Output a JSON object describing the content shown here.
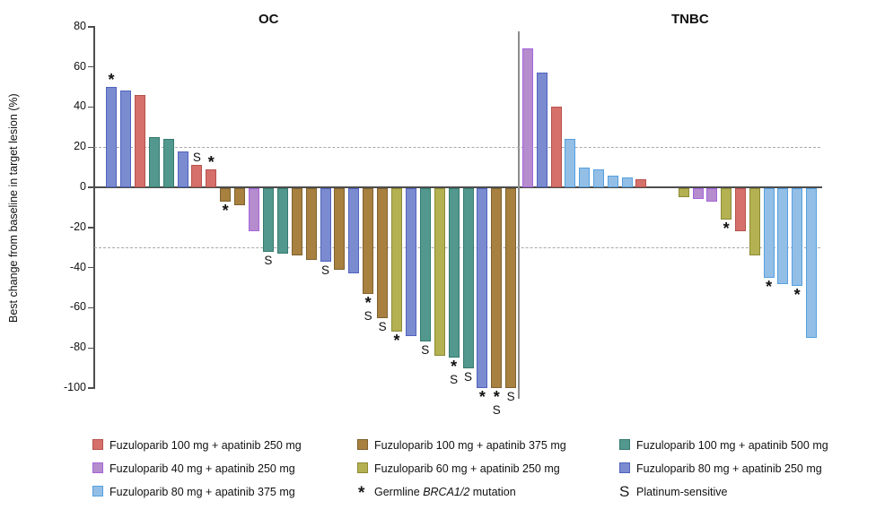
{
  "chart_data": {
    "type": "bar",
    "subtype": "waterfall",
    "title_left": "OC",
    "title_right": "TNBC",
    "ylabel": "Best change from baseline in target lesion (%)",
    "ylim": [
      -100,
      80
    ],
    "yticks": [
      80,
      60,
      40,
      20,
      0,
      -20,
      -40,
      -60,
      -80,
      -100
    ],
    "reference_lines": [
      20,
      -30
    ],
    "grid": false,
    "flag_meanings": {
      "*": "Germline BRCA1/2 mutation",
      "S": "Platinum-sensitive"
    },
    "groups": {
      "red": "Fuzuloparib 100 mg + apatinib 250 mg",
      "purple": "Fuzuloparib 40 mg + apatinib 250 mg",
      "lightblue": "Fuzuloparib 80 mg + apatinib 375 mg",
      "brown": "Fuzuloparib 100 mg + apatinib 375 mg",
      "olive": "Fuzuloparib 60 mg + apatinib 250 mg",
      "teal": "Fuzuloparib 100 mg + apatinib 500 mg",
      "blue": "Fuzuloparib 80 mg + apatinib 250 mg"
    },
    "colors": {
      "red": {
        "fill": "#D5706B",
        "border": "#B7534E"
      },
      "purple": {
        "fill": "#B58CCD",
        "border": "#A565DC"
      },
      "lightblue": {
        "fill": "#93BFE6",
        "border": "#55A0E0"
      },
      "brown": {
        "fill": "#A8803F",
        "border": "#7F612F"
      },
      "olive": {
        "fill": "#B4B152",
        "border": "#8C8A36"
      },
      "teal": {
        "fill": "#53988F",
        "border": "#357A6E"
      },
      "blue": {
        "fill": "#7A8BD0",
        "border": "#5163BE"
      }
    },
    "panels": [
      {
        "name": "OC",
        "bars": [
          {
            "value": 50,
            "group": "blue",
            "flags": "*"
          },
          {
            "value": 48,
            "group": "blue"
          },
          {
            "value": 46,
            "group": "red"
          },
          {
            "value": 25,
            "group": "teal"
          },
          {
            "value": 24,
            "group": "teal"
          },
          {
            "value": 18,
            "group": "blue"
          },
          {
            "value": 11,
            "group": "red",
            "flags": "S"
          },
          {
            "value": 9,
            "group": "red",
            "flags": "*"
          },
          {
            "value": -7,
            "group": "brown",
            "flags": "*"
          },
          {
            "value": -9,
            "group": "brown"
          },
          {
            "value": -22,
            "group": "purple"
          },
          {
            "value": -32,
            "group": "teal",
            "flags": "S"
          },
          {
            "value": -33,
            "group": "teal"
          },
          {
            "value": -34,
            "group": "brown"
          },
          {
            "value": -36,
            "group": "brown"
          },
          {
            "value": -37,
            "group": "blue",
            "flags": "S"
          },
          {
            "value": -41,
            "group": "brown"
          },
          {
            "value": -43,
            "group": "blue"
          },
          {
            "value": -53,
            "group": "brown",
            "flags": "*S"
          },
          {
            "value": -65,
            "group": "brown",
            "flags": "S"
          },
          {
            "value": -72,
            "group": "olive",
            "flags": "*"
          },
          {
            "value": -74,
            "group": "blue"
          },
          {
            "value": -77,
            "group": "teal",
            "flags": "S"
          },
          {
            "value": -84,
            "group": "olive"
          },
          {
            "value": -85,
            "group": "teal",
            "flags": "*S"
          },
          {
            "value": -90,
            "group": "teal",
            "flags": "S"
          },
          {
            "value": -100,
            "group": "blue",
            "flags": "*"
          },
          {
            "value": -100,
            "group": "brown",
            "flags": "*S"
          },
          {
            "value": -100,
            "group": "brown",
            "flags": "S"
          }
        ]
      },
      {
        "name": "TNBC",
        "bars": [
          {
            "value": 69,
            "group": "purple"
          },
          {
            "value": 57,
            "group": "blue"
          },
          {
            "value": 40,
            "group": "red"
          },
          {
            "value": 24,
            "group": "lightblue"
          },
          {
            "value": 10,
            "group": "lightblue"
          },
          {
            "value": 9,
            "group": "lightblue"
          },
          {
            "value": 6,
            "group": "lightblue"
          },
          {
            "value": 5,
            "group": "lightblue"
          },
          {
            "value": 4,
            "group": "red"
          },
          {
            "value": 0
          },
          {
            "value": 0
          },
          {
            "value": -5,
            "group": "olive"
          },
          {
            "value": -6,
            "group": "purple"
          },
          {
            "value": -7,
            "group": "purple"
          },
          {
            "value": -16,
            "group": "olive",
            "flags": "*"
          },
          {
            "value": -22,
            "group": "red"
          },
          {
            "value": -34,
            "group": "olive"
          },
          {
            "value": -45,
            "group": "lightblue",
            "flags": "*"
          },
          {
            "value": -48,
            "group": "lightblue"
          },
          {
            "value": -49,
            "group": "lightblue",
            "flags": "*"
          },
          {
            "value": -75,
            "group": "lightblue"
          }
        ]
      }
    ]
  },
  "legend": {
    "columns": [
      {
        "items": [
          {
            "swatch": "red",
            "label": "Fuzuloparib 100 mg + apatinib 250 mg"
          },
          {
            "swatch": "purple",
            "label": "Fuzuloparib 40 mg + apatinib 250 mg"
          },
          {
            "swatch": "lightblue",
            "label": "Fuzuloparib 80 mg + apatinib 375 mg"
          }
        ]
      },
      {
        "items": [
          {
            "swatch": "brown",
            "label": "Fuzuloparib 100 mg + apatinib 375 mg"
          },
          {
            "swatch": "olive",
            "label": "Fuzuloparib 60 mg + apatinib 250 mg"
          },
          {
            "symbol": "*",
            "label_parts": [
              "Germline ",
              "BRCA1/2",
              " mutation"
            ]
          }
        ]
      },
      {
        "items": [
          {
            "swatch": "teal",
            "label": "Fuzuloparib 100 mg + apatinib 500 mg"
          },
          {
            "swatch": "blue",
            "label": "Fuzuloparib 80 mg + apatinib 250 mg"
          },
          {
            "symbol": "S",
            "label": "Platinum-sensitive"
          }
        ]
      }
    ]
  }
}
